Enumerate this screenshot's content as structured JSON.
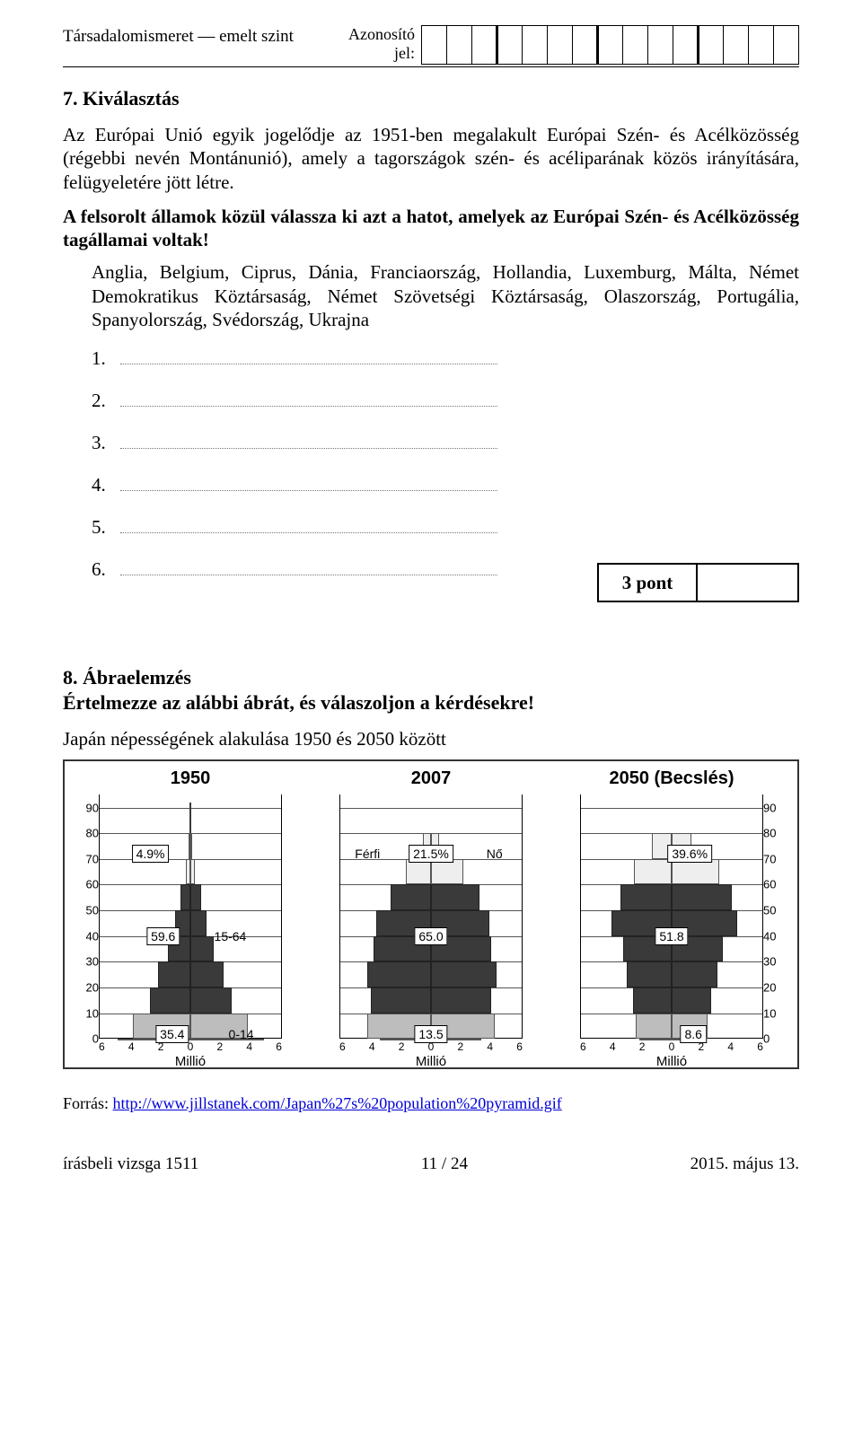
{
  "header": {
    "left": "Társadalomismeret — emelt szint",
    "id_label_1": "Azonosító",
    "id_label_2": "jel:",
    "id_cells": 15
  },
  "q7": {
    "title": "7.  Kiválasztás",
    "para": "Az Európai Unió egyik jogelődje az 1951-ben megalakult Európai Szén- és Acélközösség (régebbi nevén Montánunió), amely a tagországok szén- és acéliparának közös irányítására, felügyeletére jött létre.",
    "instr": "A felsorolt államok közül válassza ki azt a hatot, amelyek az Európai Szén- és Acélközösség  tagállamai voltak!",
    "options": "Anglia, Belgium, Ciprus, Dánia, Franciaország, Hollandia, Luxemburg, Málta, Német Demokratikus Köztársaság, Német Szövetségi Köztársaság, Olaszország, Portugália, Spanyolország, Svédország, Ukrajna",
    "answers": [
      "1.",
      "2.",
      "3.",
      "4.",
      "5.",
      "6."
    ],
    "score_label": "3 pont"
  },
  "q8": {
    "title": "8.  Ábraelemzés",
    "instr": "Értelmezze az alábbi ábrát, és válaszoljon a kérdésekre!",
    "subtitle": "Japán népességének alakulása 1950 és 2050 között"
  },
  "chart": {
    "col_titles": [
      "1950",
      "2007",
      "2050 (Becslés)"
    ],
    "y_ticks": [
      90,
      80,
      70,
      60,
      50,
      40,
      30,
      20,
      10,
      0
    ],
    "y_max": 95,
    "x_ticks": [
      "6",
      "4",
      "2",
      "0",
      "2",
      "4",
      "6"
    ],
    "x_label": "Millió",
    "x_max": 6.5,
    "colors": {
      "old": "#eeeeee",
      "mid": "#3a3a3a",
      "young": "#bdbdbd",
      "border": "#555555",
      "bg": "#ffffff"
    },
    "age_bounds": {
      "upper": 65,
      "lower": 15
    },
    "rows": [
      90,
      80,
      70,
      60,
      50,
      40,
      30,
      20,
      10,
      0
    ],
    "pyramids": [
      {
        "name": "1950",
        "pct_old": "4.9%",
        "pct_mid": "59.6",
        "pct_young": "35.4",
        "side_label_top": "",
        "side_label_bot": "15-64",
        "side_label_age": "0-14",
        "male": [
          0,
          0.08,
          0.3,
          0.7,
          1.1,
          1.6,
          2.3,
          2.9,
          4.1,
          5.2,
          4.95
        ],
        "female": [
          0,
          0.08,
          0.35,
          0.75,
          1.15,
          1.65,
          2.35,
          2.95,
          4.15,
          5.25,
          5.0
        ],
        "top_cap": true
      },
      {
        "name": "2007",
        "pct_old": "21.5%",
        "pct_mid": "65.0",
        "pct_young": "13.5",
        "side_left_lbl": "Férfi",
        "side_right_lbl": "Nő",
        "male": [
          0,
          0.6,
          1.8,
          2.9,
          3.9,
          4.1,
          4.6,
          4.3,
          4.6,
          3.7,
          3.0
        ],
        "female": [
          0,
          0.6,
          2.3,
          3.5,
          4.2,
          4.3,
          4.7,
          4.3,
          4.6,
          3.6,
          2.9
        ]
      },
      {
        "name": "2050",
        "pct_old": "39.6%",
        "pct_mid": "51.8",
        "pct_young": "8.6",
        "male": [
          0,
          1.4,
          2.7,
          3.7,
          4.3,
          3.5,
          3.2,
          2.8,
          2.6,
          2.3,
          1.95
        ],
        "female": [
          0,
          1.4,
          3.4,
          4.3,
          4.7,
          3.7,
          3.3,
          2.8,
          2.6,
          2.2,
          1.85
        ]
      }
    ]
  },
  "source": {
    "prefix": "Forrás: ",
    "url_text": "http://www.jillstanek.com/Japan%27s%20population%20pyramid.gif"
  },
  "footer": {
    "left": "írásbeli vizsga 1511",
    "center": "11 / 24",
    "right": "2015. május 13."
  }
}
